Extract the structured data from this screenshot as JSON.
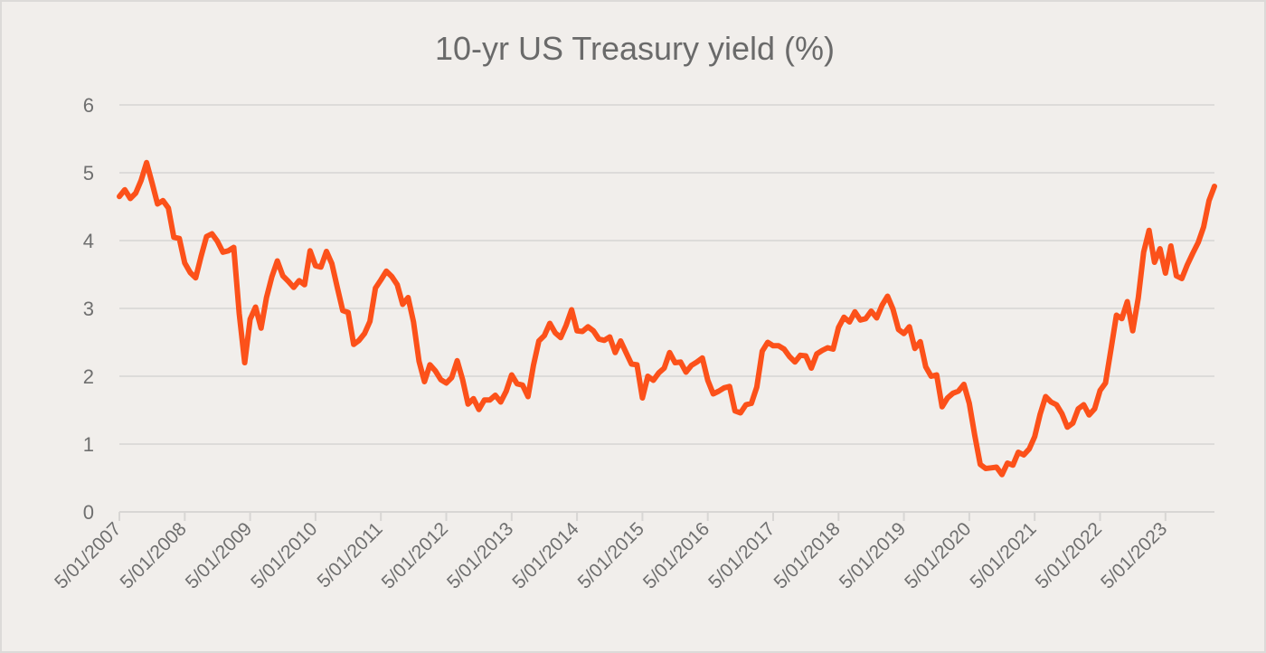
{
  "chart_data": {
    "type": "line",
    "title": "10-yr US Treasury yield (%)",
    "xlabel": "",
    "ylabel": "",
    "ylim": [
      0,
      6
    ],
    "yticks": [
      "0",
      "1",
      "2",
      "3",
      "4",
      "5",
      "6"
    ],
    "xticks": [
      "5/01/2007",
      "5/01/2008",
      "5/01/2009",
      "5/01/2010",
      "5/01/2011",
      "5/01/2012",
      "5/01/2013",
      "5/01/2014",
      "5/01/2015",
      "5/01/2016",
      "5/01/2017",
      "5/01/2018",
      "5/01/2019",
      "5/01/2020",
      "5/01/2021",
      "5/01/2022",
      "5/01/2023"
    ],
    "grid": "horizontal",
    "legend": "none",
    "line_color": "#fc511a",
    "series": [
      {
        "start": "2007-01",
        "frequency": "monthly",
        "values": [
          4.65,
          4.75,
          4.62,
          4.7,
          4.89,
          5.15,
          4.85,
          4.54,
          4.59,
          4.48,
          4.05,
          4.03,
          3.67,
          3.53,
          3.45,
          3.77,
          4.06,
          4.1,
          3.99,
          3.83,
          3.85,
          3.9,
          2.93,
          2.2,
          2.84,
          3.02,
          2.71,
          3.16,
          3.47,
          3.7,
          3.48,
          3.4,
          3.31,
          3.41,
          3.35,
          3.85,
          3.63,
          3.61,
          3.84,
          3.66,
          3.31,
          2.97,
          2.94,
          2.47,
          2.53,
          2.63,
          2.81,
          3.3,
          3.42,
          3.55,
          3.47,
          3.35,
          3.06,
          3.16,
          2.8,
          2.22,
          1.92,
          2.17,
          2.08,
          1.95,
          1.9,
          1.98,
          2.23,
          1.95,
          1.59,
          1.67,
          1.51,
          1.65,
          1.65,
          1.72,
          1.62,
          1.78,
          2.02,
          1.89,
          1.87,
          1.7,
          2.16,
          2.52,
          2.6,
          2.78,
          2.64,
          2.57,
          2.75,
          2.98,
          2.67,
          2.66,
          2.73,
          2.67,
          2.55,
          2.53,
          2.58,
          2.35,
          2.52,
          2.35,
          2.18,
          2.17,
          1.68,
          2.0,
          1.94,
          2.05,
          2.12,
          2.35,
          2.2,
          2.21,
          2.06,
          2.16,
          2.21,
          2.27,
          1.94,
          1.74,
          1.78,
          1.83,
          1.85,
          1.49,
          1.46,
          1.58,
          1.6,
          1.84,
          2.37,
          2.5,
          2.45,
          2.45,
          2.4,
          2.29,
          2.21,
          2.31,
          2.3,
          2.12,
          2.33,
          2.38,
          2.42,
          2.4,
          2.72,
          2.87,
          2.8,
          2.95,
          2.83,
          2.85,
          2.96,
          2.86,
          3.05,
          3.18,
          2.99,
          2.69,
          2.63,
          2.73,
          2.41,
          2.51,
          2.14,
          2.0,
          2.02,
          1.55,
          1.68,
          1.75,
          1.78,
          1.88,
          1.6,
          1.13,
          0.7,
          0.64,
          0.65,
          0.66,
          0.55,
          0.72,
          0.69,
          0.88,
          0.84,
          0.93,
          1.11,
          1.44,
          1.7,
          1.62,
          1.58,
          1.45,
          1.25,
          1.31,
          1.52,
          1.58,
          1.43,
          1.52,
          1.79,
          1.9,
          2.4,
          2.9,
          2.85,
          3.1,
          2.67,
          3.15,
          3.83,
          4.15,
          3.68,
          3.88,
          3.52,
          3.92,
          3.48,
          3.44,
          3.64,
          3.81,
          3.97,
          4.2,
          4.59,
          4.8
        ]
      }
    ]
  }
}
